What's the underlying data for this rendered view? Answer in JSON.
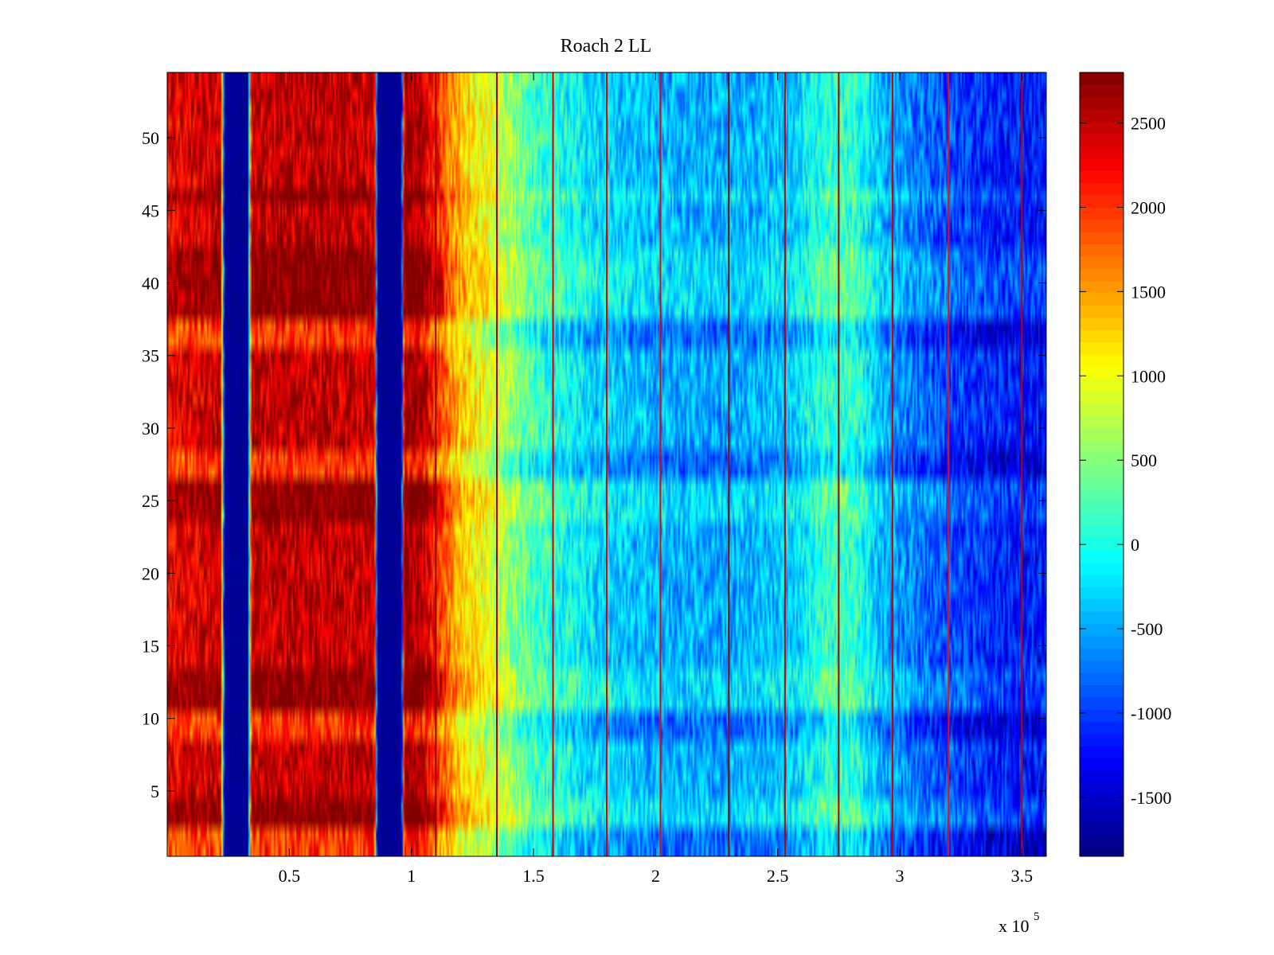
{
  "chart_data": {
    "type": "heatmap",
    "title": "Roach 2 LL",
    "xlabel": "",
    "ylabel": "",
    "x_range": [
      0,
      360000
    ],
    "y_range": [
      0.5,
      54.5
    ],
    "x_ticks": [
      50000,
      100000,
      150000,
      200000,
      250000,
      300000,
      350000
    ],
    "x_tick_labels": [
      "0.5",
      "1",
      "1.5",
      "2",
      "2.5",
      "3",
      "3.5"
    ],
    "x_multiplier_label": {
      "base": "x 10",
      "exponent": "5"
    },
    "y_ticks": [
      5,
      10,
      15,
      20,
      25,
      30,
      35,
      40,
      45,
      50
    ],
    "y_tick_labels": [
      "5",
      "10",
      "15",
      "20",
      "25",
      "30",
      "35",
      "40",
      "45",
      "50"
    ],
    "rows": 54,
    "colorbar": {
      "colormap": "jet",
      "range": [
        -1850,
        2800
      ],
      "ticks": [
        -1500,
        -1000,
        -500,
        0,
        500,
        1000,
        1500,
        2000,
        2500
      ],
      "tick_labels": [
        "-1500",
        "-1000",
        "-500",
        "0",
        "500",
        "1000",
        "1500",
        "2000",
        "2500"
      ]
    },
    "column_profile": [
      {
        "x": 0,
        "value": 2300
      },
      {
        "x": 22000,
        "value": 2450
      },
      {
        "x": 23500,
        "value": -1750
      },
      {
        "x": 33000,
        "value": -1750
      },
      {
        "x": 34500,
        "value": 2500
      },
      {
        "x": 85000,
        "value": 2500
      },
      {
        "x": 86000,
        "value": -1750
      },
      {
        "x": 96000,
        "value": -1750
      },
      {
        "x": 97000,
        "value": 2650
      },
      {
        "x": 103000,
        "value": 2650
      },
      {
        "x": 110000,
        "value": 2100
      },
      {
        "x": 120000,
        "value": 1300
      },
      {
        "x": 135000,
        "value": 800
      },
      {
        "x": 150000,
        "value": 200
      },
      {
        "x": 175000,
        "value": -250
      },
      {
        "x": 200000,
        "value": -450
      },
      {
        "x": 230000,
        "value": -500
      },
      {
        "x": 255000,
        "value": -350
      },
      {
        "x": 270000,
        "value": 100
      },
      {
        "x": 280000,
        "value": 150
      },
      {
        "x": 295000,
        "value": -500
      },
      {
        "x": 315000,
        "value": -850
      },
      {
        "x": 340000,
        "value": -1150
      },
      {
        "x": 360000,
        "value": -1200
      }
    ],
    "bright_rows": [
      1,
      2,
      9,
      10,
      27,
      28,
      36,
      37
    ],
    "dark_rows": [
      3,
      4,
      11,
      12,
      13,
      24,
      25,
      26,
      38,
      39,
      40,
      41,
      42,
      46
    ],
    "vertical_lines": [
      {
        "x": 110000,
        "value": 2700
      },
      {
        "x": 135000,
        "value": 2650
      },
      {
        "x": 158000,
        "value": 2400
      },
      {
        "x": 180000,
        "value": 2400
      },
      {
        "x": 202000,
        "value": 2300
      },
      {
        "x": 230000,
        "value": 2700
      },
      {
        "x": 253000,
        "value": 2500
      },
      {
        "x": 275000,
        "value": 2600
      },
      {
        "x": 297000,
        "value": 2500
      },
      {
        "x": 320000,
        "value": 2200
      },
      {
        "x": 350000,
        "value": 2500
      }
    ]
  }
}
